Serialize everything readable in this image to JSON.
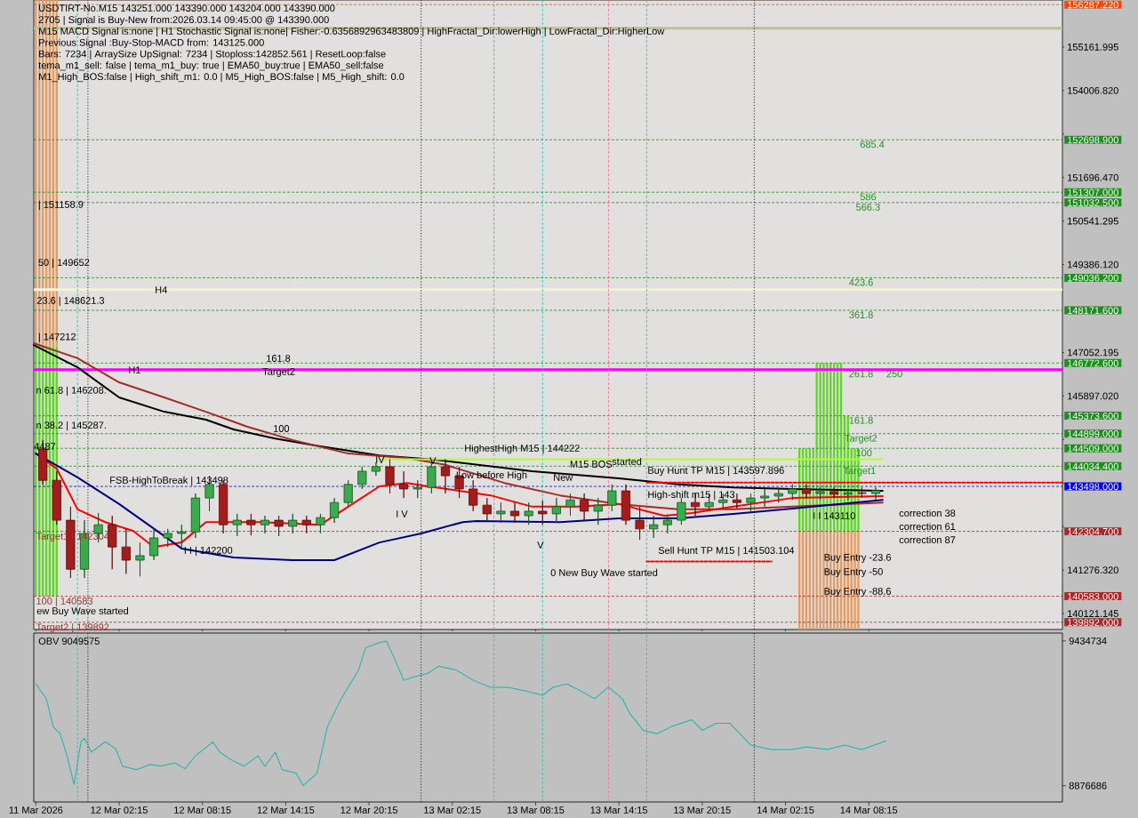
{
  "chart_data": [
    {
      "type": "candlestick",
      "title": "USDTIRT-No.M15 143251.000 143390.000 143204.000 143390.000",
      "annotations": [
        "2705 | Signal is Buy-New from:2026.03.14 09:45:00 @ 143390.000",
        "M15 MACD Signal is:none | H1 Stochastic Signal is:none| Fisher:-0.6356892963483809 | HighFractal_Dir:lowerHigh | LowFractal_Dir:HigherLow",
        "Previous Signal :Buy-Stop-MACD from: 143125.000",
        "Bars: 7234 | ArraySize UpSignal: 7234 | Stoploss:142852.561 | ResetLoop:false",
        "tema_m1_sell: false | tema_m1_buy: true | EMA50_buy:true | EMA50_sell:false",
        "M1_High_BOS:false | High_shift_m1: 0.0 | M5_High_BOS:false | M5_High_shift: 0.0",
        "H4",
        "161.8",
        "Target2",
        "100",
        "FSB-HighToBreak | 143498",
        "ew Buy Wave started",
        "IV",
        "V",
        "0 New Buy Wave started",
        "Sell Hunt TP M15 | 141503.104",
        "correction 38",
        "correction 61",
        "correction 87",
        "New",
        "started",
        "I V",
        "V",
        {
          "text": "| 151158.9",
          "x": "2026-03-11T20:24",
          "y": 150960
        },
        {
          "text": "50 | 149652",
          "x": "2026-03-11T20:24",
          "y": 149420
        },
        {
          "text": "23.6 | 148621.3",
          "x": "2026-03-11T20:18",
          "y": 148410
        },
        {
          "text": "| 147212",
          "x": "2026-03-11T20:24",
          "y": 147450
        },
        {
          "text": "H1",
          "x": "2026-03-12T02:54",
          "y": 146590
        },
        {
          "text": "n 61.8 | 146208.",
          "x": "2026-03-11T20:15",
          "y": 146030
        },
        {
          "text": "n 38.2 | 145287.",
          "x": "2026-03-11T20:15",
          "y": 145100
        },
        {
          "text": "4487",
          "x": "2026-03-11T20:06",
          "y": 144560
        },
        {
          "text": "Target1 | 142304.7",
          "x": "2026-03-11T20:15",
          "y": 142304.7
        },
        {
          "text": "I I | 142200",
          "x": "2026-03-12T06:54",
          "y": 141780
        },
        {
          "text": "100 | 140583",
          "x": "2026-03-11T20:15",
          "y": 140583.0
        },
        {
          "text": "Target2 | 139892",
          "x": "2026-03-11T20:15",
          "y": 139892.0
        },
        {
          "text": "HighestHigh M15 | 144222",
          "x": "2026-03-13T03:06",
          "y": 144490
        },
        {
          "text": "Low before High",
          "x": "2026-03-13T02:30",
          "y": 143780
        },
        {
          "text": "M15 BOS",
          "x": "2026-03-13T10:42",
          "y": 144090
        },
        {
          "text": "Buy Hunt TP M15 | 143597.896",
          "x": "2026-03-13T16:18",
          "y": 143900
        },
        {
          "text": "High-shift m15 | 143",
          "x": "2026-03-13T16:18",
          "y": 143260
        },
        {
          "text": "I I 143110",
          "x": "2026-03-14T04:12",
          "y": 142720
        },
        {
          "text": "Buy Entry -23.6",
          "x": "2026-03-14T05:00",
          "y": 141590
        },
        {
          "text": "Buy Entry -50",
          "x": "2026-03-14T05:00",
          "y": 141210
        },
        {
          "text": "Buy Entry -88.6",
          "x": "2026-03-14T05:00",
          "y": 140690
        },
        {
          "text": "685.4",
          "x": "2026-03-14T07:36",
          "y": 152698.9
        },
        {
          "text": "586",
          "x": "2026-03-14T07:36",
          "y": 151307.0
        },
        {
          "text": "566.3",
          "x": "2026-03-14T07:18",
          "y": 151032.5
        },
        {
          "text": "423.6",
          "x": "2026-03-14T06:48",
          "y": 149036.2
        },
        {
          "text": "361.8",
          "x": "2026-03-14T06:48",
          "y": 148171.6
        },
        {
          "text": "261.8",
          "x": "2026-03-14T06:48",
          "y": 146607.3
        },
        {
          "text": "250",
          "x": "2026-03-14T09:30",
          "y": 146607.3
        },
        {
          "text": "161.8",
          "x": "2026-03-14T06:48",
          "y": 145373.6
        },
        {
          "text": "Target2",
          "x": "2026-03-14T06:30",
          "y": 144899.0
        },
        {
          "text": "100",
          "x": "2026-03-14T07:18",
          "y": 144509.0
        },
        {
          "text": "Target1",
          "x": "2026-03-14T06:24",
          "y": 144034.4
        }
      ],
      "x": [
        "2026-03-11T20:45",
        "2026-03-11T21:45",
        "2026-03-11T22:45",
        "2026-03-11T23:45",
        "2026-03-12T00:45",
        "2026-03-12T01:45",
        "2026-03-12T02:45",
        "2026-03-12T03:45",
        "2026-03-12T04:45",
        "2026-03-12T05:45",
        "2026-03-12T06:45",
        "2026-03-12T07:45",
        "2026-03-12T08:45",
        "2026-03-12T09:45",
        "2026-03-12T10:45",
        "2026-03-12T11:45",
        "2026-03-12T12:45",
        "2026-03-12T13:45",
        "2026-03-12T14:45",
        "2026-03-12T15:45",
        "2026-03-12T16:45",
        "2026-03-12T17:45",
        "2026-03-12T18:45",
        "2026-03-12T19:45",
        "2026-03-12T20:45",
        "2026-03-12T21:45",
        "2026-03-12T22:45",
        "2026-03-12T23:45",
        "2026-03-13T00:45",
        "2026-03-13T01:45",
        "2026-03-13T02:45",
        "2026-03-13T03:45",
        "2026-03-13T04:45",
        "2026-03-13T05:45",
        "2026-03-13T06:45",
        "2026-03-13T07:45",
        "2026-03-13T08:45",
        "2026-03-13T09:45",
        "2026-03-13T10:45",
        "2026-03-13T11:45",
        "2026-03-13T12:45",
        "2026-03-13T13:45",
        "2026-03-13T14:45",
        "2026-03-13T15:45",
        "2026-03-13T16:45",
        "2026-03-13T17:45",
        "2026-03-13T18:45",
        "2026-03-13T19:45",
        "2026-03-13T20:45",
        "2026-03-13T21:45",
        "2026-03-13T22:45",
        "2026-03-13T23:45",
        "2026-03-14T00:45",
        "2026-03-14T01:45",
        "2026-03-14T02:45",
        "2026-03-14T03:45",
        "2026-03-14T04:45",
        "2026-03-14T05:45",
        "2026-03-14T06:45",
        "2026-03-14T07:45",
        "2026-03-14T08:45"
      ],
      "ohlc": [
        [
          144490,
          144730,
          143550,
          143660
        ],
        [
          143660,
          143900,
          142480,
          142600
        ],
        [
          142600,
          142960,
          141070,
          141300
        ],
        [
          141300,
          142600,
          141070,
          142250
        ],
        [
          142250,
          142790,
          142010,
          142480
        ],
        [
          142480,
          142720,
          141300,
          141890
        ],
        [
          141890,
          142370,
          141180,
          141540
        ],
        [
          141540,
          142010,
          141110,
          141660
        ],
        [
          141660,
          142370,
          141540,
          142130
        ],
        [
          142130,
          142370,
          141890,
          142250
        ],
        [
          142250,
          142480,
          141890,
          142290
        ],
        [
          142290,
          143310,
          142130,
          143190
        ],
        [
          143190,
          143780,
          142840,
          143550
        ],
        [
          143550,
          143660,
          142250,
          142480
        ],
        [
          142480,
          142770,
          142180,
          142600
        ],
        [
          142600,
          142770,
          142200,
          142480
        ],
        [
          142480,
          142720,
          142250,
          142600
        ],
        [
          142600,
          142720,
          142180,
          142440
        ],
        [
          142440,
          142770,
          142250,
          142600
        ],
        [
          142600,
          142720,
          142250,
          142480
        ],
        [
          142480,
          142770,
          142250,
          142670
        ],
        [
          142670,
          143190,
          142530,
          143070
        ],
        [
          143070,
          143660,
          142960,
          143550
        ],
        [
          143550,
          144020,
          143430,
          143900
        ],
        [
          143900,
          144140,
          143780,
          144020
        ],
        [
          144020,
          144220,
          143310,
          143550
        ],
        [
          143550,
          143900,
          143190,
          143430
        ],
        [
          143430,
          143660,
          143190,
          143470
        ],
        [
          143470,
          144140,
          143310,
          144020
        ],
        [
          144020,
          144220,
          143310,
          143780
        ],
        [
          143780,
          144020,
          143190,
          143430
        ],
        [
          143430,
          143660,
          142840,
          143000
        ],
        [
          143000,
          143190,
          142600,
          142770
        ],
        [
          142770,
          143070,
          142530,
          142840
        ],
        [
          142840,
          143070,
          142530,
          142720
        ],
        [
          142720,
          143070,
          142480,
          142840
        ],
        [
          142840,
          143120,
          142480,
          142770
        ],
        [
          142770,
          143190,
          142530,
          142960
        ],
        [
          142960,
          143310,
          142720,
          143140
        ],
        [
          143140,
          143310,
          142600,
          142840
        ],
        [
          142840,
          143190,
          142480,
          143000
        ],
        [
          143000,
          143550,
          142840,
          143380
        ],
        [
          143380,
          143550,
          142480,
          142600
        ],
        [
          142600,
          142960,
          142080,
          142370
        ],
        [
          142370,
          142720,
          142130,
          142480
        ],
        [
          142480,
          142720,
          142250,
          142600
        ],
        [
          142600,
          143190,
          142480,
          143070
        ],
        [
          143070,
          143310,
          142720,
          142960
        ],
        [
          142960,
          143310,
          142840,
          143070
        ],
        [
          143070,
          143310,
          142910,
          143140
        ],
        [
          143140,
          143310,
          142910,
          143070
        ],
        [
          143070,
          143310,
          142840,
          143190
        ],
        [
          143190,
          143430,
          142960,
          143240
        ],
        [
          143240,
          143470,
          143070,
          143310
        ],
        [
          143310,
          143550,
          143140,
          143430
        ],
        [
          143430,
          143550,
          143190,
          143310
        ],
        [
          143310,
          143470,
          143140,
          143360
        ],
        [
          143360,
          143470,
          143190,
          143290
        ],
        [
          143290,
          143430,
          143140,
          143330
        ],
        [
          143330,
          143470,
          143190,
          143310
        ],
        [
          143310,
          143470,
          143140,
          143390
        ]
      ],
      "series": [
        {
          "type": "line",
          "color": "#000000",
          "x": [
            "2026-03-11T20:06",
            "2026-03-11T23:15",
            "2026-03-12T02:15",
            "2026-03-12T05:30",
            "2026-03-12T08:30",
            "2026-03-12T10:30",
            "2026-03-12T13:30",
            "2026-03-12T16:45",
            "2026-03-12T21:00",
            "2026-03-13T01:00",
            "2026-03-13T08:00",
            "2026-03-13T14:15",
            "2026-03-13T18:30",
            "2026-03-13T22:30",
            "2026-03-14T02:45",
            "2026-03-14T09:15"
          ],
          "values": [
            147250,
            146660,
            145860,
            145480,
            145270,
            145010,
            144770,
            144560,
            144320,
            144210,
            143900,
            143710,
            143550,
            143470,
            143430,
            143380
          ]
        },
        {
          "type": "line",
          "color": "#a52a2a",
          "x": [
            "2026-03-11T20:06",
            "2026-03-11T23:15",
            "2026-03-12T02:15",
            "2026-03-12T05:30",
            "2026-03-12T08:30",
            "2026-03-12T11:30",
            "2026-03-12T14:45",
            "2026-03-12T18:45",
            "2026-03-12T23:00",
            "2026-03-13T01:45",
            "2026-03-13T06:00",
            "2026-03-13T10:00",
            "2026-03-13T14:15",
            "2026-03-13T18:30",
            "2026-03-13T22:30",
            "2026-03-14T02:45",
            "2026-03-14T09:15"
          ],
          "values": [
            147300,
            146900,
            146260,
            145860,
            145480,
            145080,
            144730,
            144370,
            144250,
            144070,
            143590,
            143260,
            143030,
            142890,
            142890,
            142960,
            143070
          ]
        },
        {
          "type": "line",
          "color": "#ff0000",
          "x": [
            "2026-03-11T20:15",
            "2026-03-11T21:45",
            "2026-03-11T23:15",
            "2026-03-12T01:15",
            "2026-03-12T03:15",
            "2026-03-12T04:45",
            "2026-03-12T06:45",
            "2026-03-12T08:30",
            "2026-03-12T09:45",
            "2026-03-12T12:30",
            "2026-03-12T16:45",
            "2026-03-12T18:45",
            "2026-03-12T21:00",
            "2026-03-12T23:00",
            "2026-03-13T00:30",
            "2026-03-13T02:45",
            "2026-03-13T05:00",
            "2026-03-13T08:00",
            "2026-03-13T11:15",
            "2026-03-13T14:15",
            "2026-03-13T17:30",
            "2026-03-13T19:30",
            "2026-03-13T22:30",
            "2026-03-14T02:45",
            "2026-03-14T09:15"
          ],
          "values": [
            144370,
            143970,
            142890,
            142550,
            142320,
            141890,
            142010,
            142550,
            null,
            142550,
            142480,
            142960,
            143500,
            143590,
            143500,
            null,
            143260,
            142960,
            142960,
            143030,
            142720,
            142790,
            142960,
            143190,
            143240
          ]
        },
        {
          "type": "line",
          "color": "#000080",
          "x": [
            "2026-03-11T20:15",
            "2026-03-11T23:15",
            "2026-03-12T02:15",
            "2026-03-12T05:30",
            "2026-03-12T06:45",
            "2026-03-12T10:30",
            "2026-03-12T14:45",
            "2026-03-12T17:45",
            "2026-03-12T21:00",
            "2026-03-13T00:00",
            "2026-03-13T03:00",
            "2026-03-13T04:00",
            "2026-03-13T10:00",
            "2026-03-13T14:15",
            "2026-03-13T18:30",
            "2026-03-13T22:30",
            "2026-03-14T02:45",
            "2026-03-14T09:15"
          ],
          "values": [
            144370,
            143740,
            143030,
            142180,
            141850,
            141610,
            141540,
            141540,
            142010,
            142250,
            142550,
            142580,
            142550,
            142650,
            142650,
            142770,
            142910,
            143140
          ]
        },
        {
          "type": "line",
          "color": "#adff2f",
          "x": [
            "2026-03-12T21:00",
            "2026-03-14T09:15"
          ],
          "values": [
            144222,
            144222
          ]
        },
        {
          "type": "line",
          "color": "#ff0000",
          "line_style": "dashed",
          "x": [
            "2026-03-13T16:15",
            "2026-03-14T22:12"
          ],
          "values": [
            143597.896,
            143597.896
          ]
        },
        {
          "type": "line",
          "color": "#ff0000",
          "line_style": "dashed",
          "x": [
            "2026-03-13T16:15",
            "2026-03-14T01:15"
          ],
          "values": [
            141503.104,
            141503.104
          ]
        },
        {
          "type": "bar",
          "color": "#5fd825",
          "x": [
            "2026-03-11T20:15",
            "2026-03-11T20:30",
            "2026-03-11T20:45",
            "2026-03-11T21:00",
            "2026-03-11T21:15",
            "2026-03-11T21:30",
            "2026-03-11T21:45",
            "2026-03-14T03:15",
            "2026-03-14T03:30",
            "2026-03-14T03:45",
            "2026-03-14T04:00",
            "2026-03-14T04:15",
            "2026-03-14T04:30",
            "2026-03-14T04:45",
            "2026-03-14T05:00",
            "2026-03-14T05:15",
            "2026-03-14T05:30",
            "2026-03-14T05:45",
            "2026-03-14T06:00",
            "2026-03-14T06:15",
            "2026-03-14T06:30",
            "2026-03-14T06:45",
            "2026-03-14T07:00",
            "2026-03-14T07:15",
            "2026-03-14T07:30"
          ],
          "base": [
            140583,
            140583,
            140583,
            140583,
            140583,
            140583,
            140583,
            142304.7,
            142304.7,
            142304.7,
            142304.7,
            142304.7,
            142304.7,
            142304.7,
            142304.7,
            142304.7,
            142304.7,
            142304.7,
            142304.7,
            142304.7,
            142304.7,
            142304.7,
            142304.7,
            142304.7,
            142304.7
          ],
          "values": [
            6629,
            6629,
            6629,
            6629,
            6629,
            6629,
            6629,
            2204.3,
            2204.3,
            2204.3,
            2204.3,
            2204.3,
            4467.9,
            4467.9,
            4467.9,
            4467.9,
            4467.9,
            4467.9,
            4467.9,
            4467.9,
            3068.9,
            3068.9,
            2204.3,
            2204.3,
            2204.3
          ]
        },
        {
          "type": "bar",
          "color": "#e59b62",
          "x": [
            "2026-03-11T20:15",
            "2026-03-11T20:30",
            "2026-03-11T20:45",
            "2026-03-11T21:00",
            "2026-03-11T21:15",
            "2026-03-11T21:30",
            "2026-03-11T21:45",
            "2026-03-14T03:15",
            "2026-03-14T03:30",
            "2026-03-14T03:45",
            "2026-03-14T04:00",
            "2026-03-14T04:15",
            "2026-03-14T04:30",
            "2026-03-14T04:45",
            "2026-03-14T05:00",
            "2026-03-14T05:15",
            "2026-03-14T05:30",
            "2026-03-14T05:45",
            "2026-03-14T06:00",
            "2026-03-14T06:15",
            "2026-03-14T06:30",
            "2026-03-14T06:45",
            "2026-03-14T07:00",
            "2026-03-14T07:15",
            "2026-03-14T07:30"
          ],
          "base": [
            147212,
            147212,
            147212,
            147212,
            147212,
            147212,
            147212,
            139700,
            139700,
            139700,
            139700,
            139700,
            139700,
            139700,
            139700,
            139700,
            139700,
            139700,
            139700,
            139700,
            139700,
            139700,
            139700,
            139700,
            139700
          ],
          "values": [
            9198,
            9198,
            9198,
            9198,
            9198,
            9198,
            9198,
            2604.7,
            2604.7,
            2604.7,
            2604.7,
            2604.7,
            2604.7,
            2604.7,
            2604.7,
            2604.7,
            2604.7,
            2604.7,
            2604.7,
            2604.7,
            2604.7,
            2604.7,
            2604.7,
            2604.7,
            2604.7
          ]
        }
      ],
      "xlim": [
        "2026-03-11T20:06",
        "2026-03-14T22:12"
      ],
      "ylim": [
        139700,
        156410
      ],
      "xticks": [
        {
          "value": "2026-03-11T20:15",
          "label": null
        },
        {
          "value": "2026-03-12T02:15",
          "label": null
        },
        {
          "value": "2026-03-12T08:15",
          "label": null
        },
        {
          "value": "2026-03-12T14:15",
          "label": null
        },
        {
          "value": "2026-03-12T20:15",
          "label": null
        },
        {
          "value": "2026-03-13T02:15",
          "label": null
        },
        {
          "value": "2026-03-13T08:15",
          "label": null
        },
        {
          "value": "2026-03-13T14:15",
          "label": null
        },
        {
          "value": "2026-03-13T20:15",
          "label": null
        },
        {
          "value": "2026-03-14T02:15",
          "label": null
        },
        {
          "value": "2026-03-14T08:15",
          "label": null
        }
      ],
      "yticks": [
        140121.145,
        {
          "value": 141276.32,
          "label": "141276.320"
        },
        {
          "value": 142431.495,
          "label": null
        },
        {
          "value": 143586.67,
          "label": null
        },
        {
          "value": 144741.845,
          "label": null
        },
        {
          "value": 145897.02,
          "label": "145897.020"
        },
        147052.195,
        {
          "value": 149386.12,
          "label": "149386.120"
        },
        150541.295,
        {
          "value": 151696.47,
          "label": "151696.470"
        },
        {
          "value": 152851.645,
          "label": null
        },
        {
          "value": 154006.82,
          "label": "154006.820"
        },
        155161.995
      ],
      "tick_labels": "y",
      "ref_lines": [
        {
          "axis": "y",
          "value": 156287.22,
          "label": "156287.220",
          "color": "#ff4500",
          "line_style": "dashed"
        },
        {
          "axis": "y",
          "value": 155660,
          "color": "#bdbd9b",
          "line_style": "solid"
        },
        {
          "axis": "y",
          "value": 152698.9,
          "label": "152698.900",
          "color": "#228b22",
          "line_style": "dashed"
        },
        {
          "axis": "y",
          "value": 151307.0,
          "label": "151307.000",
          "color": "#228b22",
          "line_style": "dashed"
        },
        {
          "axis": "y",
          "value": 151032.5,
          "label": "151032.500",
          "color": "#228b22",
          "line_style": "dashed"
        },
        {
          "axis": "y",
          "value": 149036.2,
          "label": "149036.200",
          "color": "#228b22",
          "line_style": "dashed"
        },
        {
          "axis": "y",
          "value": 148720,
          "color": "#f3f3d8",
          "line_style": "solid"
        },
        {
          "axis": "y",
          "value": 148171.6,
          "label": "148171.600",
          "color": "#228b22",
          "line_style": "dashed"
        },
        {
          "axis": "y",
          "value": 146772.6,
          "label": "146772.600",
          "color": "#228b22",
          "line_style": "dashed"
        },
        {
          "axis": "y",
          "value": 146607.3,
          "color": "#228b22",
          "line_style": "dashed"
        },
        {
          "axis": "y",
          "value": 146600,
          "color": "#ff00ff",
          "line_style": "solid"
        },
        {
          "axis": "y",
          "value": 145373.6,
          "label": "145373.600",
          "color": "#228b22",
          "line_style": "dashed"
        },
        {
          "axis": "y",
          "value": 144899.0,
          "label": "144899.000",
          "color": "#228b22",
          "line_style": "dashed"
        },
        {
          "axis": "y",
          "value": 144509.0,
          "label": "144509.000",
          "color": "#228b22",
          "line_style": "dashed"
        },
        {
          "axis": "y",
          "value": 144034.4,
          "label": "144034.400",
          "color": "#228b22",
          "line_style": "dashed"
        },
        {
          "axis": "y",
          "value": 143498.0,
          "label": "143498.000",
          "color": "#0000ff",
          "line_style": "dashed"
        },
        {
          "axis": "y",
          "value": 142304.7,
          "label": "142304.700",
          "color": "#a52a2a",
          "line_style": "dashed"
        },
        {
          "axis": "y",
          "value": 140583.0,
          "label": "140583.000",
          "color": "#a52a2a",
          "line_style": "dashed"
        },
        {
          "axis": "y",
          "value": 139892.0,
          "label": "139892.000",
          "color": "#a52a2a",
          "line_style": "dashed"
        },
        {
          "axis": "x",
          "value": "2026-03-11T23:15",
          "color": "#00c8c8",
          "line_style": "dashed"
        },
        {
          "axis": "x",
          "value": "2026-03-12T00:00",
          "color": "#000000",
          "line_style": "dotted"
        },
        {
          "axis": "x",
          "value": "2026-03-13T00:00",
          "color": "#000000",
          "line_style": "dotted"
        },
        {
          "axis": "x",
          "value": "2026-03-13T05:15",
          "color": "#00c8c8",
          "line_style": "dashed"
        },
        {
          "axis": "x",
          "value": "2026-03-13T08:45",
          "color": "#00c8c8",
          "line_style": "dashed"
        },
        {
          "axis": "x",
          "value": "2026-03-13T13:30",
          "color": "#ff6699",
          "line_style": "dashed"
        },
        {
          "axis": "x",
          "value": "2026-03-13T16:15",
          "color": "#00c8c8",
          "line_style": "dashed"
        },
        {
          "axis": "x",
          "value": "2026-03-14T00:00",
          "color": "#000000",
          "line_style": "dotted"
        }
      ]
    },
    {
      "type": "line",
      "title": "OBV 9049575",
      "series": [
        {
          "color": "#20b2aa",
          "x": [
            "2026-03-11T20:15",
            "2026-03-11T21:00",
            "2026-03-11T21:30",
            "2026-03-11T22:00",
            "2026-03-11T22:30",
            "2026-03-11T23:00",
            "2026-03-11T23:30",
            "2026-03-11T23:45",
            "2026-03-12T00:15",
            "2026-03-12T01:15",
            "2026-03-12T02:00",
            "2026-03-12T02:30",
            "2026-03-12T03:30",
            "2026-03-12T04:30",
            "2026-03-12T05:15",
            "2026-03-12T06:15",
            "2026-03-12T07:00",
            "2026-03-12T07:45",
            "2026-03-12T09:00",
            "2026-03-12T09:30",
            "2026-03-12T10:15",
            "2026-03-12T11:15",
            "2026-03-12T12:15",
            "2026-03-12T12:45",
            "2026-03-12T13:30",
            "2026-03-12T14:00",
            "2026-03-12T15:00",
            "2026-03-12T15:30",
            "2026-03-12T16:30",
            "2026-03-12T17:15",
            "2026-03-12T18:15",
            "2026-03-12T19:30",
            "2026-03-12T20:00",
            "2026-03-12T21:00",
            "2026-03-12T21:30",
            "2026-03-12T22:00",
            "2026-03-12T22:45",
            "2026-03-12T23:30",
            "2026-03-13T00:30",
            "2026-03-13T01:15",
            "2026-03-13T02:30",
            "2026-03-13T03:45",
            "2026-03-13T05:00",
            "2026-03-13T06:15",
            "2026-03-13T07:30",
            "2026-03-13T08:45",
            "2026-03-13T09:30",
            "2026-03-13T10:30",
            "2026-03-13T11:30",
            "2026-03-13T12:30",
            "2026-03-13T13:30",
            "2026-03-13T14:30",
            "2026-03-13T15:00",
            "2026-03-13T16:00",
            "2026-03-13T17:00",
            "2026-03-13T18:00",
            "2026-03-13T19:30",
            "2026-03-13T20:15",
            "2026-03-13T21:15",
            "2026-03-13T22:15",
            "2026-03-13T23:45",
            "2026-03-14T01:15",
            "2026-03-14T02:45",
            "2026-03-14T03:45",
            "2026-03-14T05:15",
            "2026-03-14T06:30",
            "2026-03-14T07:45",
            "2026-03-14T09:30"
          ],
          "values": [
            9269000,
            9212000,
            9104000,
            9077000,
            8992000,
            8881000,
            9046000,
            9060000,
            9006000,
            9046000,
            9019000,
            8952000,
            8938000,
            8959000,
            8952000,
            8965000,
            8942000,
            8992000,
            9046000,
            9006000,
            8979000,
            8952000,
            8992000,
            8952000,
            9006000,
            8938000,
            8925000,
            8877000,
            8925000,
            9104000,
            9212000,
            9323000,
            9408000,
            9428000,
            9434000,
            9377000,
            9283000,
            9296000,
            9310000,
            9337000,
            9323000,
            9283000,
            9256000,
            9256000,
            9242000,
            9225000,
            9256000,
            9269000,
            9242000,
            9212000,
            9256000,
            9212000,
            9158000,
            9090000,
            9077000,
            9104000,
            9131000,
            9090000,
            9117000,
            9117000,
            9033000,
            9016000,
            9016000,
            9026000,
            9016000,
            9033000,
            9016000,
            9049575
          ]
        }
      ],
      "xlim": [
        "2026-03-11T20:06",
        "2026-03-14T22:12"
      ],
      "ylim": [
        8814000,
        9465000
      ],
      "xticks": [
        {
          "value": "2026-03-11T20:15",
          "label": "11 Mar 2026"
        },
        {
          "value": "2026-03-12T02:15",
          "label": "12 Mar 02:15"
        },
        {
          "value": "2026-03-12T08:15",
          "label": "12 Mar 08:15"
        },
        {
          "value": "2026-03-12T14:15",
          "label": "12 Mar 14:15"
        },
        {
          "value": "2026-03-12T20:15",
          "label": "12 Mar 20:15"
        },
        {
          "value": "2026-03-13T02:15",
          "label": "13 Mar 02:15"
        },
        {
          "value": "2026-03-13T08:15",
          "label": "13 Mar 08:15"
        },
        {
          "value": "2026-03-13T14:15",
          "label": "13 Mar 14:15"
        },
        {
          "value": "2026-03-13T20:15",
          "label": "13 Mar 20:15"
        },
        {
          "value": "2026-03-14T02:15",
          "label": "14 Mar 02:15"
        },
        {
          "value": "2026-03-14T08:15",
          "label": "14 Mar 08:15"
        }
      ],
      "yticks": [
        9434734,
        8876686
      ],
      "ref_lines": [
        {
          "axis": "x",
          "value": "2026-03-11T23:15",
          "color": "#00c8c8",
          "line_style": "dashed"
        },
        {
          "axis": "x",
          "value": "2026-03-12T00:00",
          "color": "#000000",
          "line_style": "dotted"
        },
        {
          "axis": "x",
          "value": "2026-03-13T00:00",
          "color": "#000000",
          "line_style": "dotted"
        },
        {
          "axis": "x",
          "value": "2026-03-13T05:15",
          "color": "#00c8c8",
          "line_style": "dashed"
        },
        {
          "axis": "x",
          "value": "2026-03-13T08:45",
          "color": "#00c8c8",
          "line_style": "dashed"
        },
        {
          "axis": "x",
          "value": "2026-03-13T13:30",
          "color": "#ff6699",
          "line_style": "dashed"
        },
        {
          "axis": "x",
          "value": "2026-03-13T16:15",
          "color": "#00c8c8",
          "line_style": "dashed"
        },
        {
          "axis": "x",
          "value": "2026-03-14T00:00",
          "color": "#000000",
          "line_style": "dotted"
        }
      ]
    }
  ]
}
